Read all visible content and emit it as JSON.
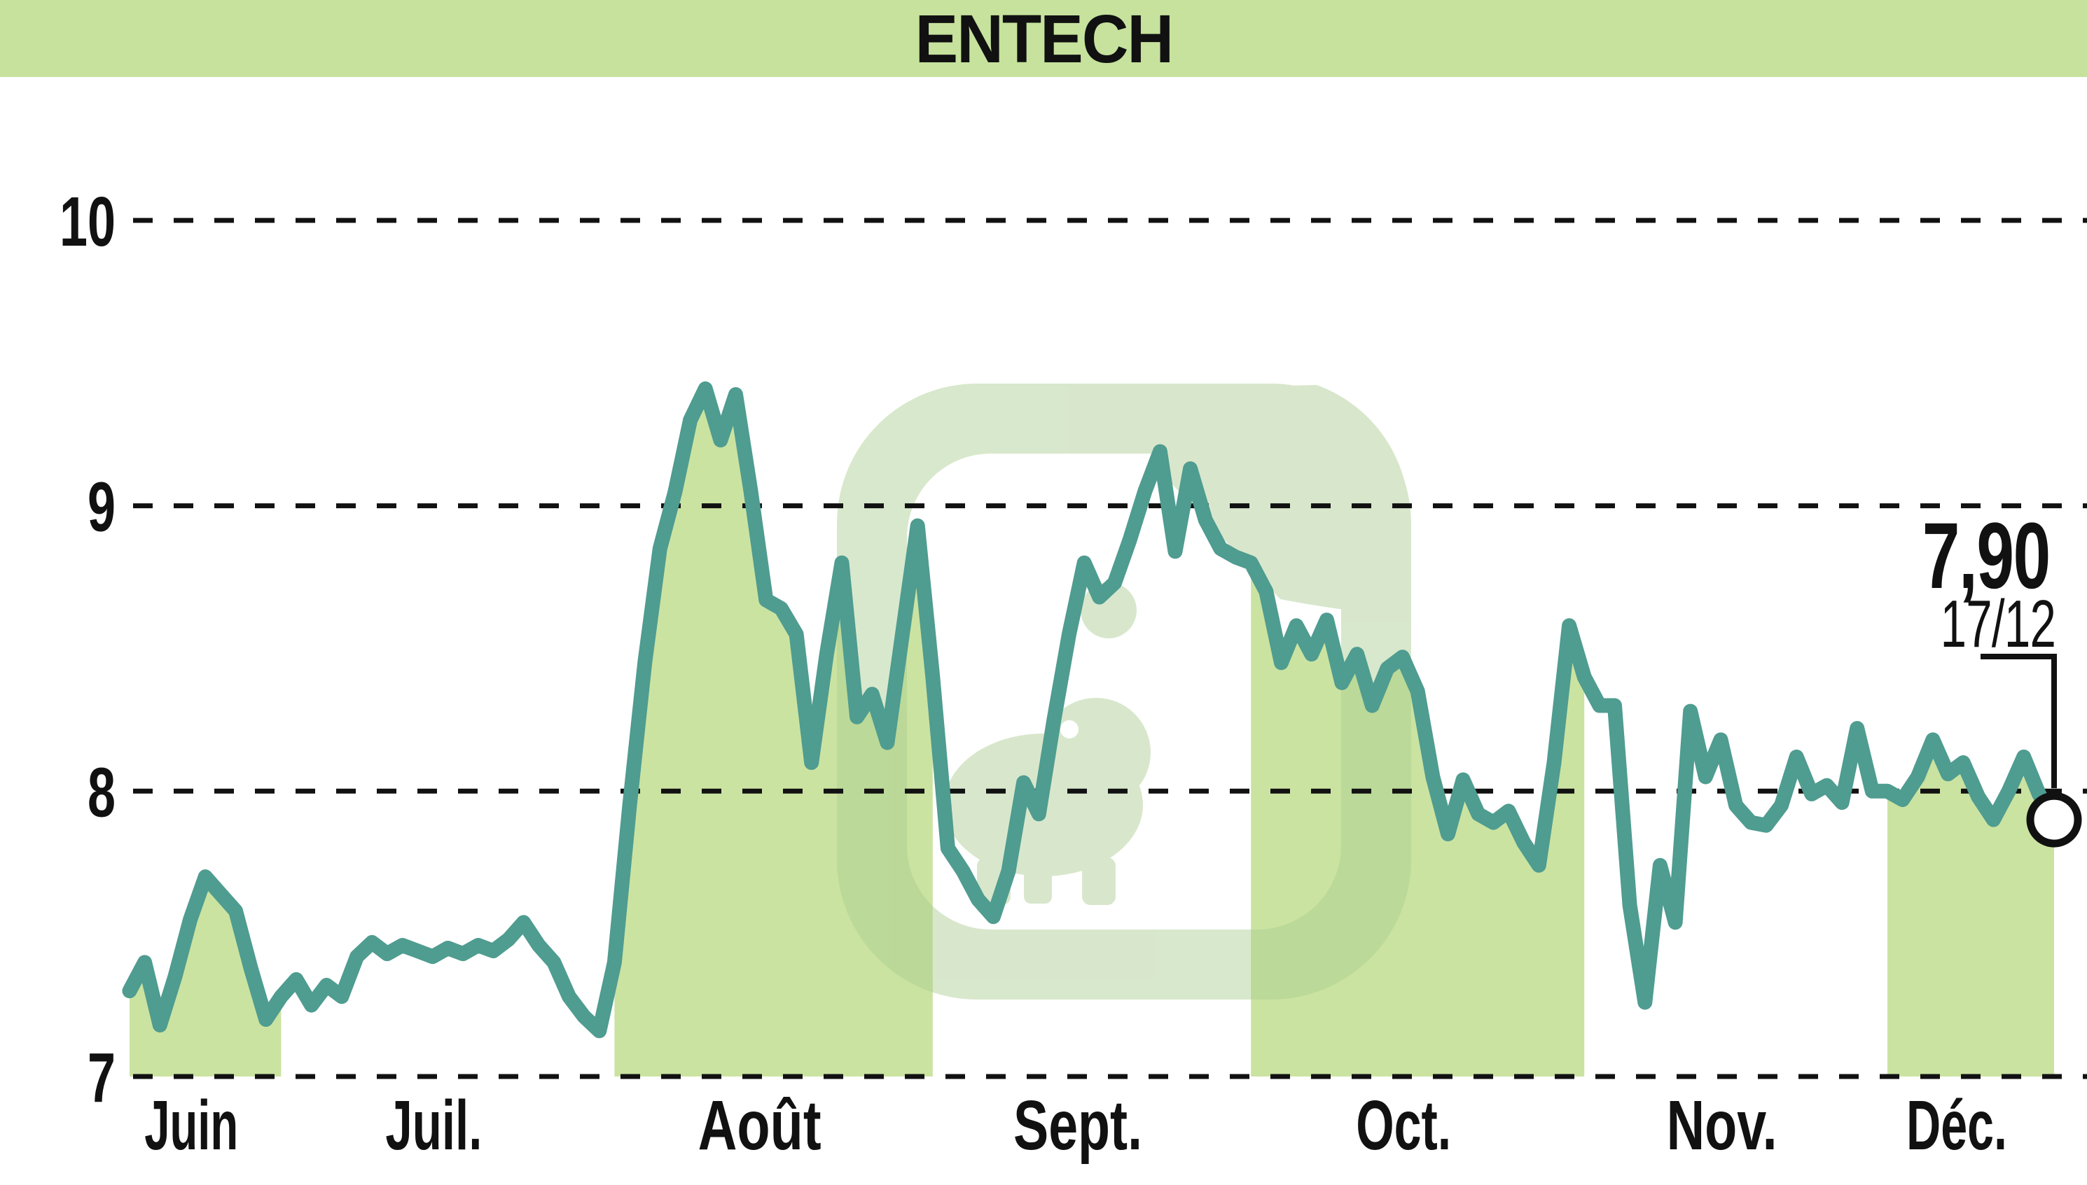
{
  "header": {
    "title": "ENTECH"
  },
  "callout": {
    "price": "7,90",
    "date": "17/12"
  },
  "colors": {
    "band": "#c6e29d",
    "area_fill": "#cbe3a1",
    "line": "#4f9c90",
    "watermark": "#a9cc8f",
    "text": "#111111",
    "marker_fill": "#ffffff"
  },
  "chart_data": {
    "type": "area",
    "title": "ENTECH",
    "xlabel": "",
    "ylabel": "",
    "ylim": [
      7,
      10.25
    ],
    "yticks": [
      7,
      8,
      9,
      10
    ],
    "grid": "horizontal-dashed",
    "legend": false,
    "last_price": "7,90",
    "last_date": "17/12",
    "note": "daily closing prices, alternate months shaded under curve",
    "months": [
      {
        "label": "Juin",
        "filled": true,
        "values": [
          7.3,
          7.4,
          7.18,
          7.35,
          7.55,
          7.7,
          7.64,
          7.58,
          7.38,
          7.2
        ]
      },
      {
        "label": "Juil.",
        "filled": false,
        "values": [
          7.28,
          7.34,
          7.25,
          7.32,
          7.28,
          7.42,
          7.47,
          7.43,
          7.46,
          7.44,
          7.42,
          7.45,
          7.43,
          7.46,
          7.44,
          7.48,
          7.54,
          7.46,
          7.4,
          7.28,
          7.21,
          7.16
        ]
      },
      {
        "label": "Août",
        "filled": true,
        "values": [
          7.4,
          7.95,
          8.45,
          8.85,
          9.05,
          9.3,
          9.41,
          9.23,
          9.39,
          9.05,
          8.67,
          8.64,
          8.55,
          8.1,
          8.48,
          8.8,
          8.26,
          8.34,
          8.17,
          8.55,
          8.93
        ]
      },
      {
        "label": "Sept.",
        "filled": false,
        "values": [
          8.4,
          7.8,
          7.72,
          7.62,
          7.56,
          7.72,
          8.03,
          7.92,
          8.25,
          8.55,
          8.8,
          8.68,
          8.73,
          8.88,
          9.05,
          9.19,
          8.84,
          9.13,
          8.95,
          8.85,
          8.82
        ]
      },
      {
        "label": "Oct.",
        "filled": true,
        "values": [
          8.8,
          8.7,
          8.45,
          8.58,
          8.48,
          8.6,
          8.38,
          8.48,
          8.3,
          8.43,
          8.47,
          8.35,
          8.05,
          7.85,
          8.04,
          7.92,
          7.89,
          7.93,
          7.82,
          7.74,
          8.1,
          8.58
        ]
      },
      {
        "label": "Nov.",
        "filled": false,
        "values": [
          8.4,
          8.3,
          8.3,
          7.6,
          7.26,
          7.74,
          7.54,
          8.28,
          8.05,
          8.18,
          7.95,
          7.89,
          7.88,
          7.95,
          8.12,
          7.99,
          8.02,
          7.96,
          8.22,
          8.0
        ]
      },
      {
        "label": "Déc.",
        "filled": true,
        "values": [
          8.0,
          7.97,
          8.05,
          8.18,
          8.06,
          8.1,
          7.98,
          7.9,
          8.0,
          8.12,
          7.99,
          7.9
        ]
      }
    ]
  }
}
